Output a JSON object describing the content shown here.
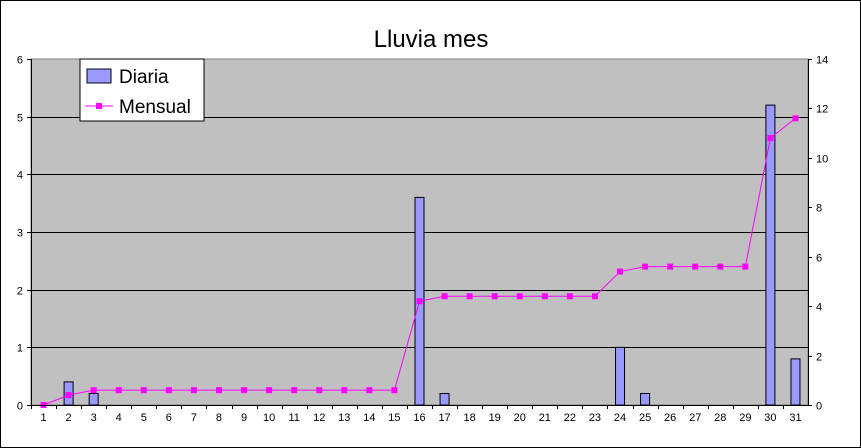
{
  "chart_data": {
    "type": "bar+line",
    "title": "Lluvia mes",
    "categories": [
      "1",
      "2",
      "3",
      "4",
      "5",
      "6",
      "7",
      "8",
      "9",
      "10",
      "11",
      "12",
      "13",
      "14",
      "15",
      "16",
      "17",
      "18",
      "19",
      "20",
      "21",
      "22",
      "23",
      "24",
      "25",
      "26",
      "27",
      "28",
      "29",
      "30",
      "31"
    ],
    "series": [
      {
        "name": "Diaria",
        "type": "bar",
        "axis": "left",
        "color": "#9999ff",
        "values": [
          0,
          0.4,
          0.2,
          0,
          0,
          0,
          0,
          0,
          0,
          0,
          0,
          0,
          0,
          0,
          0,
          3.6,
          0.2,
          0,
          0,
          0,
          0,
          0,
          0,
          1.0,
          0.2,
          0,
          0,
          0,
          0,
          5.2,
          0.8
        ]
      },
      {
        "name": "Mensual",
        "type": "line",
        "axis": "right",
        "color": "#ff00ff",
        "values": [
          0,
          0.4,
          0.6,
          0.6,
          0.6,
          0.6,
          0.6,
          0.6,
          0.6,
          0.6,
          0.6,
          0.6,
          0.6,
          0.6,
          0.6,
          4.2,
          4.4,
          4.4,
          4.4,
          4.4,
          4.4,
          4.4,
          4.4,
          5.4,
          5.6,
          5.6,
          5.6,
          5.6,
          5.6,
          10.8,
          11.6
        ]
      }
    ],
    "y_left": {
      "min": 0,
      "max": 6,
      "ticks": [
        "0",
        "1",
        "2",
        "3",
        "4",
        "5",
        "6"
      ]
    },
    "y_right": {
      "min": 0,
      "max": 14,
      "ticks": [
        "0",
        "2",
        "4",
        "6",
        "8",
        "10",
        "12",
        "14"
      ]
    },
    "plot_background": "#c0c0c0",
    "grid": true,
    "legend_position": "top-left"
  }
}
